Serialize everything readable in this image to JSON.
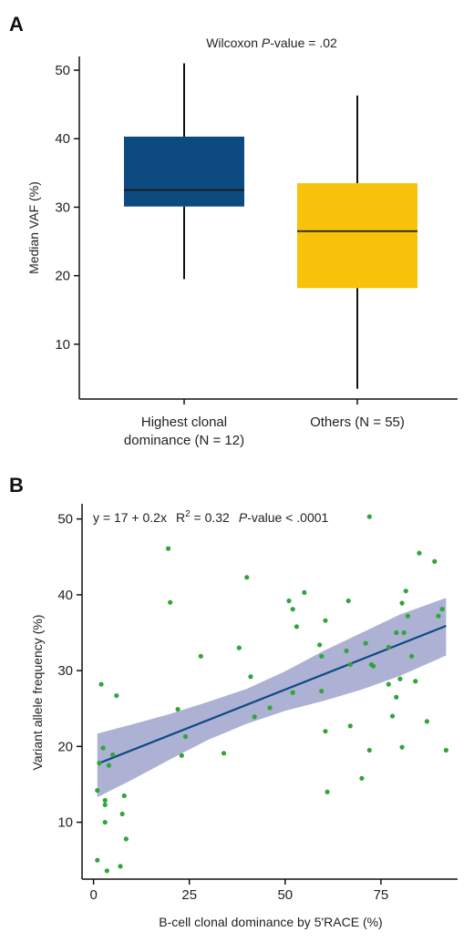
{
  "chart_data": [
    {
      "panel": "A",
      "type": "box",
      "annotation": {
        "prefix": "Wilcoxon ",
        "italic": "P",
        "suffix": "-value = .02"
      },
      "ylabel": "Median VAF (%)",
      "ylim": [
        2,
        52
      ],
      "yticks": [
        10,
        20,
        30,
        40,
        50
      ],
      "categories": [
        {
          "label_lines": [
            "Highest clonal",
            "dominance (N = 12)"
          ],
          "min": 19.5,
          "q1": 30.1,
          "median": 32.5,
          "q3": 40.3,
          "max": 51.0,
          "color": "#0d4a80"
        },
        {
          "label_lines": [
            "Others (N = 55)"
          ],
          "min": 3.5,
          "q1": 18.2,
          "median": 26.5,
          "q3": 33.5,
          "max": 46.3,
          "color": "#f8c20a"
        }
      ]
    },
    {
      "panel": "B",
      "type": "scatter",
      "annotation": {
        "equation": "y = 17 + 0.2x",
        "r2_label": "R",
        "r2_sup": "2",
        "r2_value": " = 0.32",
        "p_italic": "P",
        "p_suffix": "-value < .0001"
      },
      "xlabel": "B-cell clonal dominance by 5'RACE (%)",
      "ylabel": "Variant allele frequency (%)",
      "xlim": [
        -3,
        95
      ],
      "ylim": [
        2.5,
        52
      ],
      "xticks": [
        0,
        25,
        50,
        75
      ],
      "yticks": [
        10,
        20,
        30,
        40,
        50
      ],
      "point_color": "#2fa53a",
      "line_color": "#0d4a80",
      "band_color": "#8e93c4",
      "fit": {
        "intercept": 17.5,
        "slope": 0.2,
        "x_range": [
          1,
          92
        ]
      },
      "band": [
        [
          1,
          21.7,
          13.3
        ],
        [
          10,
          22.9,
          15.6
        ],
        [
          20,
          24.3,
          18.3
        ],
        [
          30,
          25.9,
          20.9
        ],
        [
          40,
          27.6,
          23.0
        ],
        [
          50,
          29.9,
          24.7
        ],
        [
          60,
          32.6,
          26.0
        ],
        [
          70,
          35.0,
          27.5
        ],
        [
          80,
          37.4,
          29.3
        ],
        [
          92,
          39.6,
          32.0
        ]
      ],
      "points": [
        [
          1,
          5
        ],
        [
          1,
          14.2
        ],
        [
          1.5,
          17.8
        ],
        [
          2,
          28.2
        ],
        [
          2.5,
          19.8
        ],
        [
          3,
          12.3
        ],
        [
          3,
          10.0
        ],
        [
          3,
          12.9
        ],
        [
          3.5,
          3.6
        ],
        [
          4,
          17.5
        ],
        [
          5,
          18.9
        ],
        [
          6,
          26.7
        ],
        [
          7,
          4.2
        ],
        [
          7.5,
          11.1
        ],
        [
          8,
          13.5
        ],
        [
          8.5,
          7.8
        ],
        [
          19.5,
          46.1
        ],
        [
          20,
          39.0
        ],
        [
          22,
          24.9
        ],
        [
          23,
          18.8
        ],
        [
          24,
          21.3
        ],
        [
          28,
          31.9
        ],
        [
          34,
          19.1
        ],
        [
          38,
          33.0
        ],
        [
          40,
          42.3
        ],
        [
          41,
          29.2
        ],
        [
          42,
          23.9
        ],
        [
          46,
          25.1
        ],
        [
          51,
          39.2
        ],
        [
          52,
          38.1
        ],
        [
          52,
          27.1
        ],
        [
          53,
          35.8
        ],
        [
          55,
          40.3
        ],
        [
          59,
          33.4
        ],
        [
          59.5,
          31.9
        ],
        [
          59.5,
          27.3
        ],
        [
          60.5,
          22.0
        ],
        [
          60.5,
          36.6
        ],
        [
          61,
          14.0
        ],
        [
          66,
          32.6
        ],
        [
          66.5,
          39.2
        ],
        [
          67,
          22.7
        ],
        [
          67,
          30.8
        ],
        [
          70,
          15.8
        ],
        [
          71,
          33.6
        ],
        [
          72,
          19.5
        ],
        [
          72.5,
          30.8
        ],
        [
          72,
          50.3
        ],
        [
          73,
          30.6
        ],
        [
          77,
          33.1
        ],
        [
          77,
          28.2
        ],
        [
          78,
          24.0
        ],
        [
          79,
          26.5
        ],
        [
          79,
          35.0
        ],
        [
          80,
          28.9
        ],
        [
          80.5,
          38.9
        ],
        [
          80.5,
          19.9
        ],
        [
          81,
          35.0
        ],
        [
          81.5,
          40.5
        ],
        [
          82,
          37.2
        ],
        [
          83,
          31.9
        ],
        [
          84,
          28.6
        ],
        [
          85,
          45.5
        ],
        [
          87,
          23.3
        ],
        [
          89,
          44.4
        ],
        [
          90,
          37.2
        ],
        [
          91,
          38.1
        ],
        [
          92,
          19.5
        ]
      ]
    }
  ]
}
